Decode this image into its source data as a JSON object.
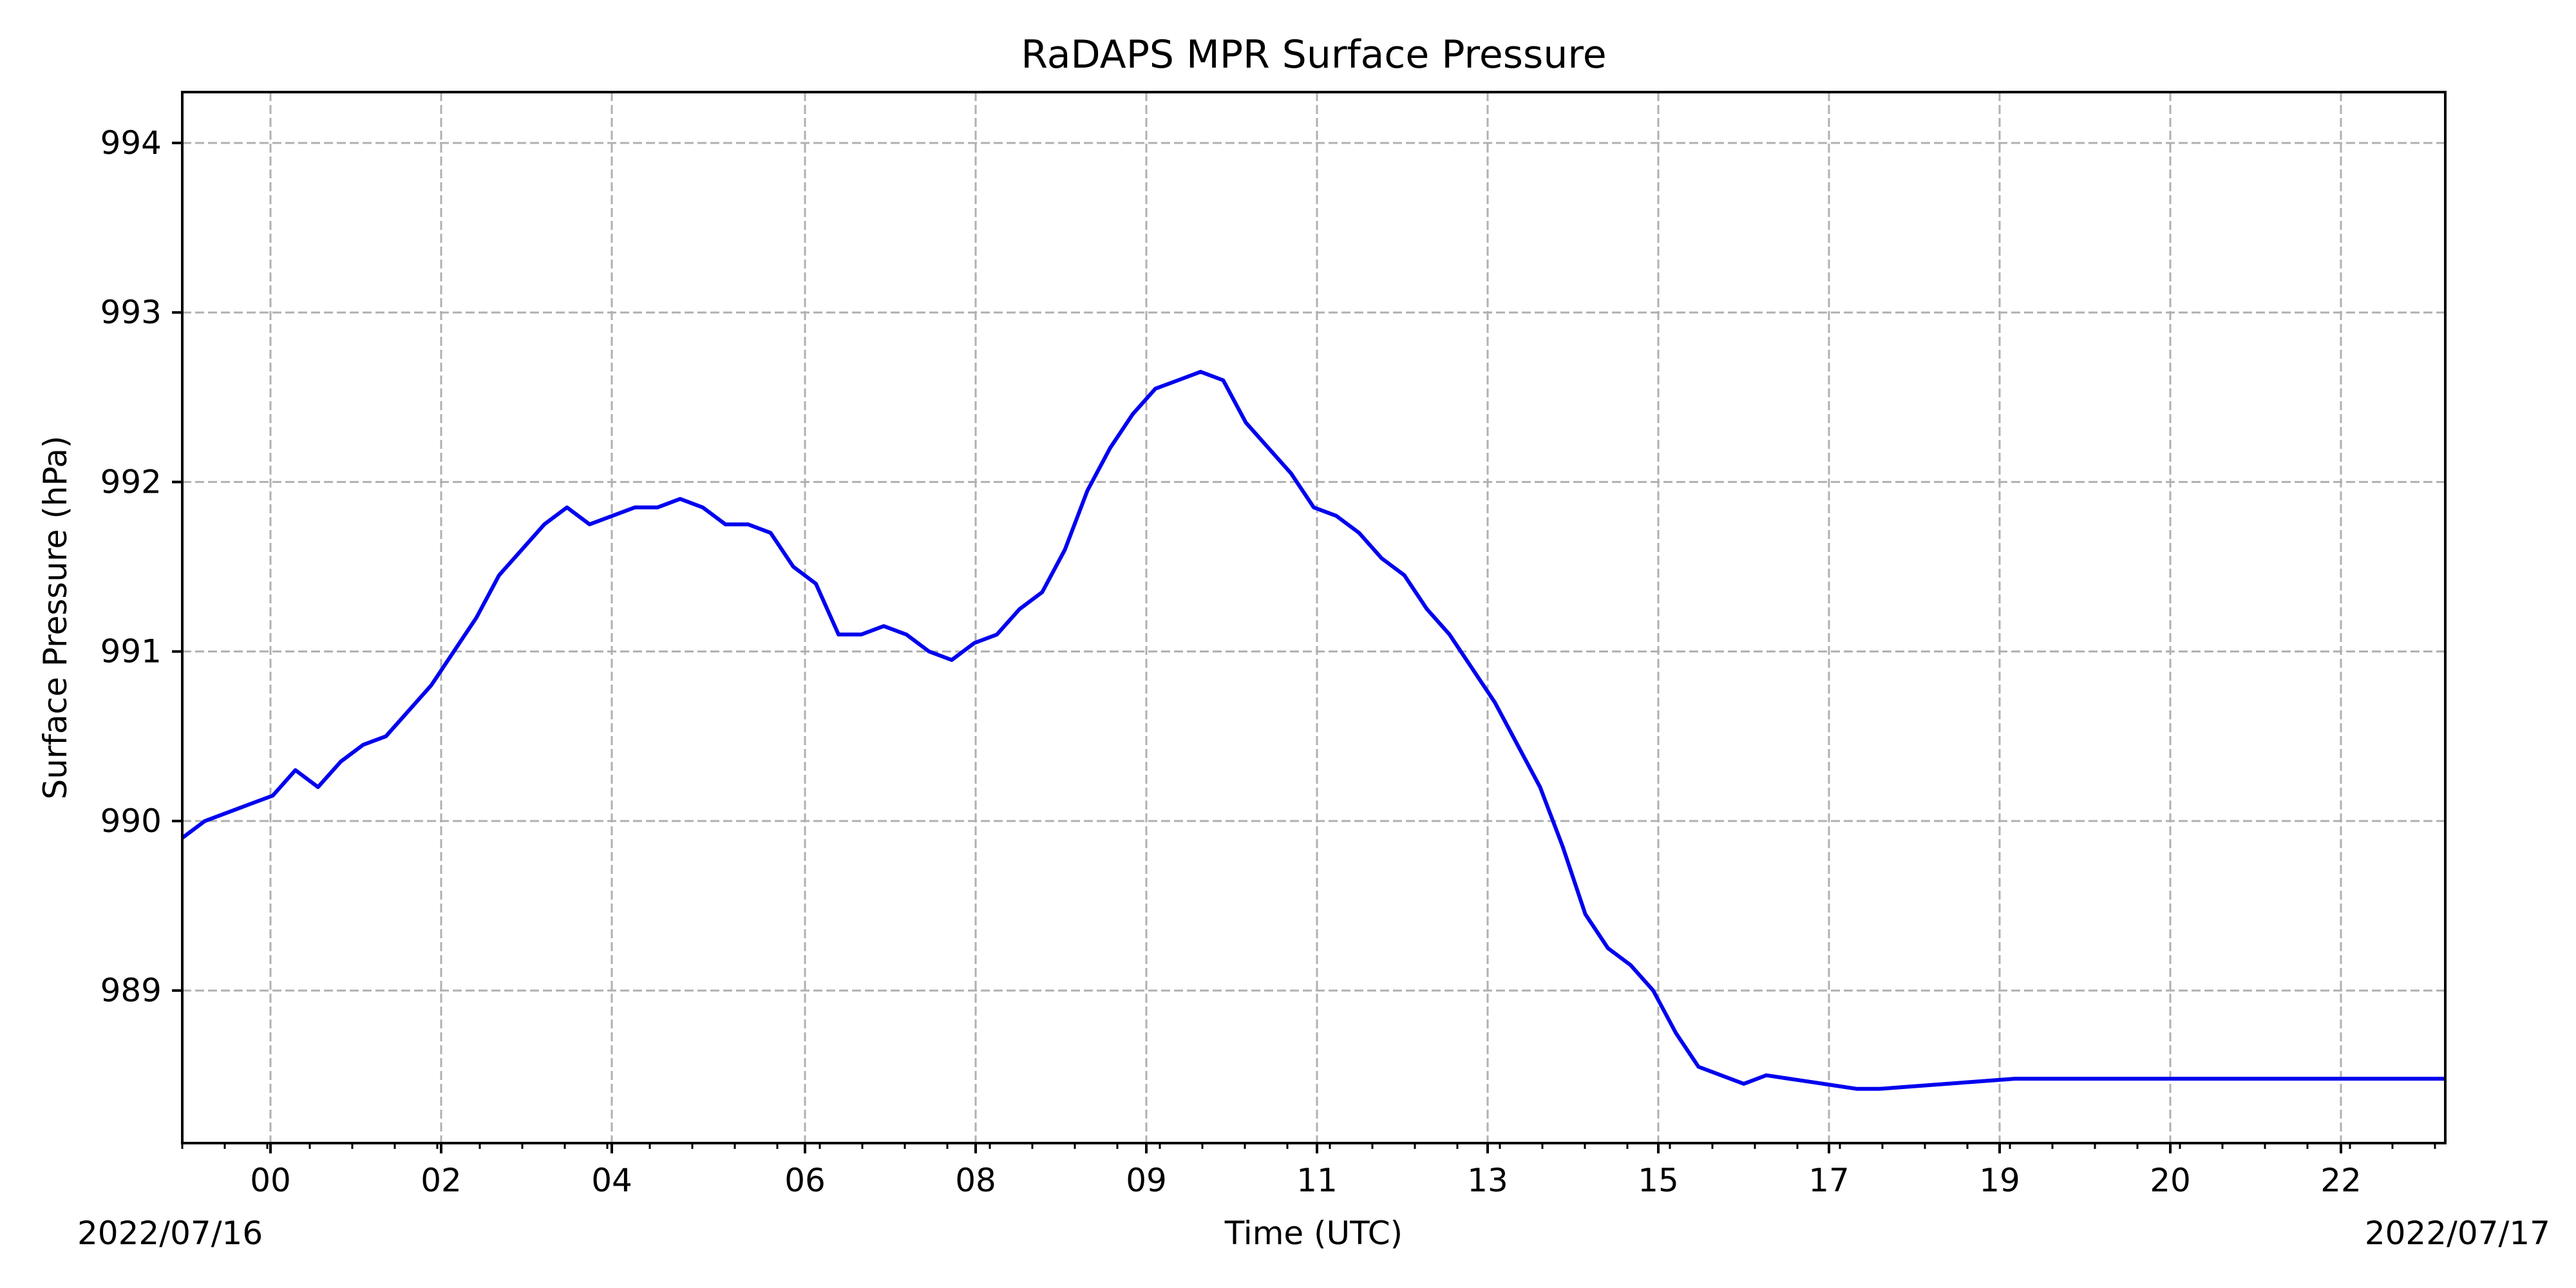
{
  "chart_data": {
    "type": "line",
    "title": "RaDAPS MPR Surface Pressure",
    "xlabel": "Time (UTC)",
    "ylabel": "Surface Pressure (hPa)",
    "date_start_label": "2022/07/16",
    "date_end_label": "2022/07/17",
    "x_tick_labels": [
      "00",
      "02",
      "04",
      "06",
      "08",
      "09",
      "11",
      "13",
      "15",
      "17",
      "19",
      "20",
      "22"
    ],
    "y_tick_labels": [
      "989",
      "990",
      "991",
      "992",
      "993",
      "994"
    ],
    "y_ticks": [
      989,
      990,
      991,
      992,
      993,
      994
    ],
    "ylim": [
      988.1,
      994.3
    ],
    "grid": true,
    "line_color": "#0000ee",
    "series": [
      {
        "x": [
          0.0,
          0.01,
          0.02,
          0.03,
          0.04,
          0.05,
          0.06,
          0.07,
          0.08,
          0.09,
          0.1,
          0.11,
          0.12,
          0.13,
          0.14,
          0.15,
          0.16,
          0.17,
          0.18,
          0.19,
          0.2,
          0.21,
          0.22,
          0.23,
          0.24,
          0.25,
          0.26,
          0.27,
          0.28,
          0.29,
          0.3,
          0.31,
          0.32,
          0.33,
          0.34,
          0.35,
          0.36,
          0.37,
          0.38,
          0.39,
          0.4,
          0.41,
          0.42,
          0.43,
          0.44,
          0.45,
          0.46,
          0.47,
          0.48,
          0.49,
          0.5,
          0.51,
          0.52,
          0.53,
          0.54,
          0.55,
          0.56,
          0.57,
          0.58,
          0.59,
          0.6,
          0.61,
          0.62,
          0.63,
          0.64,
          0.65,
          0.66,
          0.67,
          0.68,
          0.69,
          0.7,
          0.71,
          0.72,
          0.73,
          0.74,
          0.75,
          0.76,
          0.77,
          0.78,
          0.79,
          0.8,
          0.81,
          0.82,
          0.83,
          0.84,
          0.85,
          0.86,
          0.87,
          0.88,
          0.89,
          0.9,
          0.91,
          0.92,
          0.93,
          0.94,
          0.95,
          0.96,
          0.97,
          0.98,
          0.99,
          1.0
        ],
        "y": [
          989.9,
          990.0,
          990.05,
          990.1,
          990.15,
          990.3,
          990.2,
          990.35,
          990.45,
          990.5,
          990.65,
          990.8,
          991.0,
          991.2,
          991.45,
          991.6,
          991.75,
          991.85,
          991.75,
          991.8,
          991.85,
          991.85,
          991.9,
          991.85,
          991.75,
          991.75,
          991.7,
          991.5,
          991.4,
          991.1,
          991.1,
          991.15,
          991.1,
          991.0,
          990.95,
          991.05,
          991.1,
          991.25,
          991.35,
          991.6,
          991.95,
          992.2,
          992.4,
          992.55,
          992.6,
          992.65,
          992.6,
          992.35,
          992.2,
          992.05,
          991.85,
          991.8,
          991.7,
          991.55,
          991.45,
          991.25,
          991.1,
          990.9,
          990.7,
          990.45,
          990.2,
          989.85,
          989.45,
          989.25,
          989.15,
          989.0,
          988.75,
          988.55,
          988.5,
          988.45,
          988.5,
          988.48,
          988.46,
          988.44,
          988.42,
          988.42,
          988.43,
          988.44,
          988.45,
          988.46,
          988.47,
          988.48,
          988.48,
          988.48,
          988.48,
          988.48,
          988.48,
          988.48,
          988.48,
          988.48,
          988.48,
          988.48,
          988.48,
          988.48,
          988.48,
          988.48,
          988.48,
          988.48,
          988.48,
          988.48,
          988.48
        ]
      }
    ]
  }
}
